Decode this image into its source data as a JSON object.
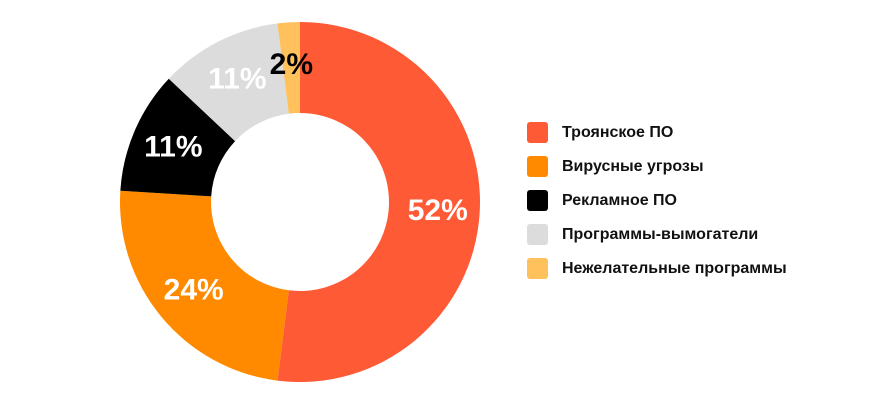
{
  "chart_data": {
    "type": "pie",
    "donut": true,
    "categories": [
      "Троянское ПО",
      "Вирусные угрозы",
      "Рекламное ПО",
      "Программы-вымогатели",
      "Нежелательные программы"
    ],
    "values": [
      52,
      24,
      11,
      11,
      2
    ],
    "data_labels": [
      "52%",
      "24%",
      "11%",
      "11%",
      "2%"
    ],
    "colors": [
      "#ff5a36",
      "#ff8a00",
      "#000000",
      "#dcdcdc",
      "#ffc15c"
    ],
    "label_colors": [
      "#ffffff",
      "#ffffff",
      "#ffffff",
      "#ffffff",
      "#000000"
    ],
    "legend_order": [
      0,
      1,
      2,
      3,
      4
    ],
    "legend_position": "right"
  }
}
